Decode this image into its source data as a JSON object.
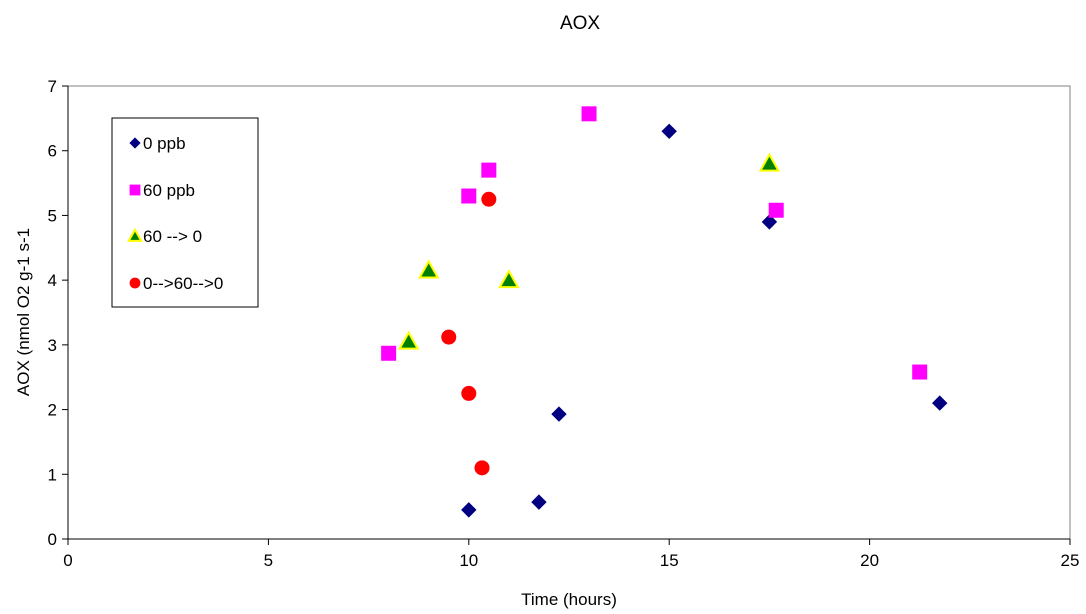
{
  "chart_data": {
    "type": "scatter",
    "title": "AOX",
    "xlabel": "Time (hours)",
    "ylabel": "AOX (nmol O2 g-1 s-1",
    "xlim": [
      0,
      25
    ],
    "ylim": [
      0,
      7
    ],
    "xticks": [
      0,
      5,
      10,
      15,
      20,
      25
    ],
    "yticks": [
      0,
      1,
      2,
      3,
      4,
      5,
      6,
      7
    ],
    "grid": false,
    "legend_position": "top-left inside",
    "series": [
      {
        "name": "0 ppb",
        "marker": "diamond",
        "color": "#000080",
        "stroke": "#000080",
        "points": [
          {
            "x": 10.0,
            "y": 0.45
          },
          {
            "x": 11.75,
            "y": 0.57
          },
          {
            "x": 12.25,
            "y": 1.93
          },
          {
            "x": 15.0,
            "y": 6.3
          },
          {
            "x": 17.5,
            "y": 4.9
          },
          {
            "x": 21.75,
            "y": 2.1
          }
        ]
      },
      {
        "name": "60 ppb",
        "marker": "square",
        "color": "#ff00ff",
        "stroke": "#ff00ff",
        "points": [
          {
            "x": 8.0,
            "y": 2.87
          },
          {
            "x": 10.0,
            "y": 5.3
          },
          {
            "x": 10.5,
            "y": 5.7
          },
          {
            "x": 13.0,
            "y": 6.57
          },
          {
            "x": 17.67,
            "y": 5.08
          },
          {
            "x": 21.25,
            "y": 2.58
          }
        ]
      },
      {
        "name": "60 --> 0",
        "marker": "triangle",
        "color": "#008000",
        "stroke": "#ffff00",
        "points": [
          {
            "x": 8.5,
            "y": 3.05
          },
          {
            "x": 9.0,
            "y": 4.15
          },
          {
            "x": 11.0,
            "y": 4.0
          },
          {
            "x": 17.5,
            "y": 5.8
          }
        ]
      },
      {
        "name": "0-->60-->0",
        "marker": "circle",
        "color": "#ff0000",
        "stroke": "#ff0000",
        "points": [
          {
            "x": 9.5,
            "y": 3.12
          },
          {
            "x": 10.0,
            "y": 2.25
          },
          {
            "x": 10.33,
            "y": 1.1
          },
          {
            "x": 10.5,
            "y": 5.25
          }
        ]
      }
    ]
  }
}
